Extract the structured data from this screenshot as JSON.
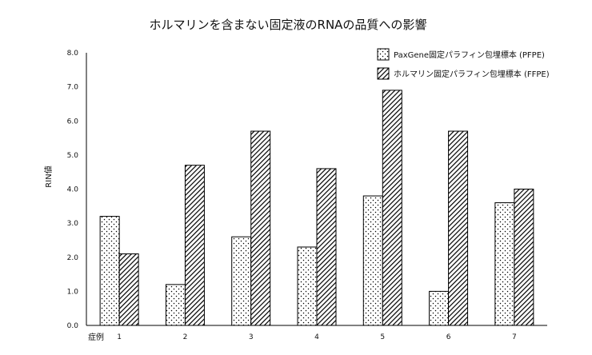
{
  "chart_data": {
    "type": "bar",
    "title": "ホルマリンを含まない固定液のRNAの品質への影響",
    "xlabel": "症例",
    "ylabel": "RIN値",
    "categories": [
      "1",
      "2",
      "3",
      "4",
      "5",
      "6",
      "7"
    ],
    "ylim": [
      0,
      8
    ],
    "ytick_labels": [
      "0.0",
      "1.0",
      "2.0",
      "3.0",
      "4.0",
      "5.0",
      "6.0",
      "7.0",
      "8.0"
    ],
    "grid": false,
    "legend": "top-right",
    "series": [
      {
        "name": "PaxGene固定パラフィン包埋標本 (PFPE)",
        "fill_pattern": "dots",
        "values": [
          3.2,
          1.2,
          2.6,
          2.3,
          3.8,
          1.0,
          3.6
        ]
      },
      {
        "name": "ホルマリン固定パラフィン包埋標本 (FFPE)",
        "fill_pattern": "hatch",
        "values": [
          2.1,
          4.7,
          5.7,
          4.6,
          6.9,
          5.7,
          4.0
        ]
      }
    ],
    "colors": {
      "bar_outline": "#000000",
      "pattern_ink": "#000000",
      "axis": "#000000",
      "background": "#ffffff"
    }
  }
}
